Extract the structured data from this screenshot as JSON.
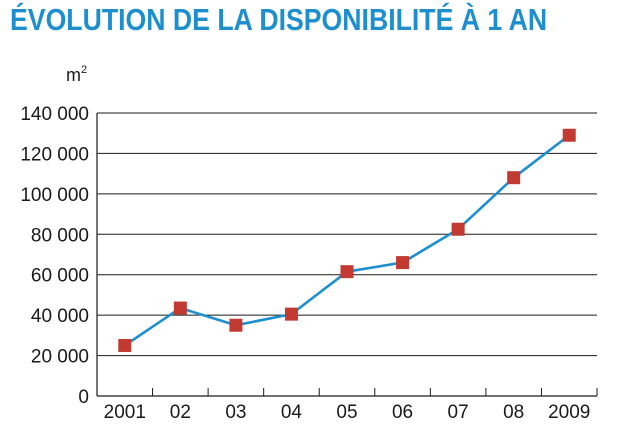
{
  "chart_data": {
    "type": "line",
    "title": "ÉVOLUTION DE LA DISPONIBILITÉ À 1 AN",
    "ylabel": "m",
    "ylabel_superscript": "2",
    "categories": [
      "2001",
      "02",
      "03",
      "04",
      "05",
      "06",
      "07",
      "08",
      "2009"
    ],
    "values": [
      25000,
      43500,
      35000,
      40500,
      61500,
      66000,
      82500,
      108000,
      129000
    ],
    "ylim": [
      0,
      140000
    ],
    "yticks": [
      0,
      20000,
      40000,
      60000,
      80000,
      100000,
      120000,
      140000
    ],
    "ytick_labels": [
      "0",
      "20 000",
      "40 000",
      "60 000",
      "80 000",
      "100 000",
      "120 000",
      "140 000"
    ],
    "grid": true,
    "colors": {
      "line": "#1d8fce",
      "marker": "#c23a32",
      "title": "#1d8fce"
    }
  }
}
